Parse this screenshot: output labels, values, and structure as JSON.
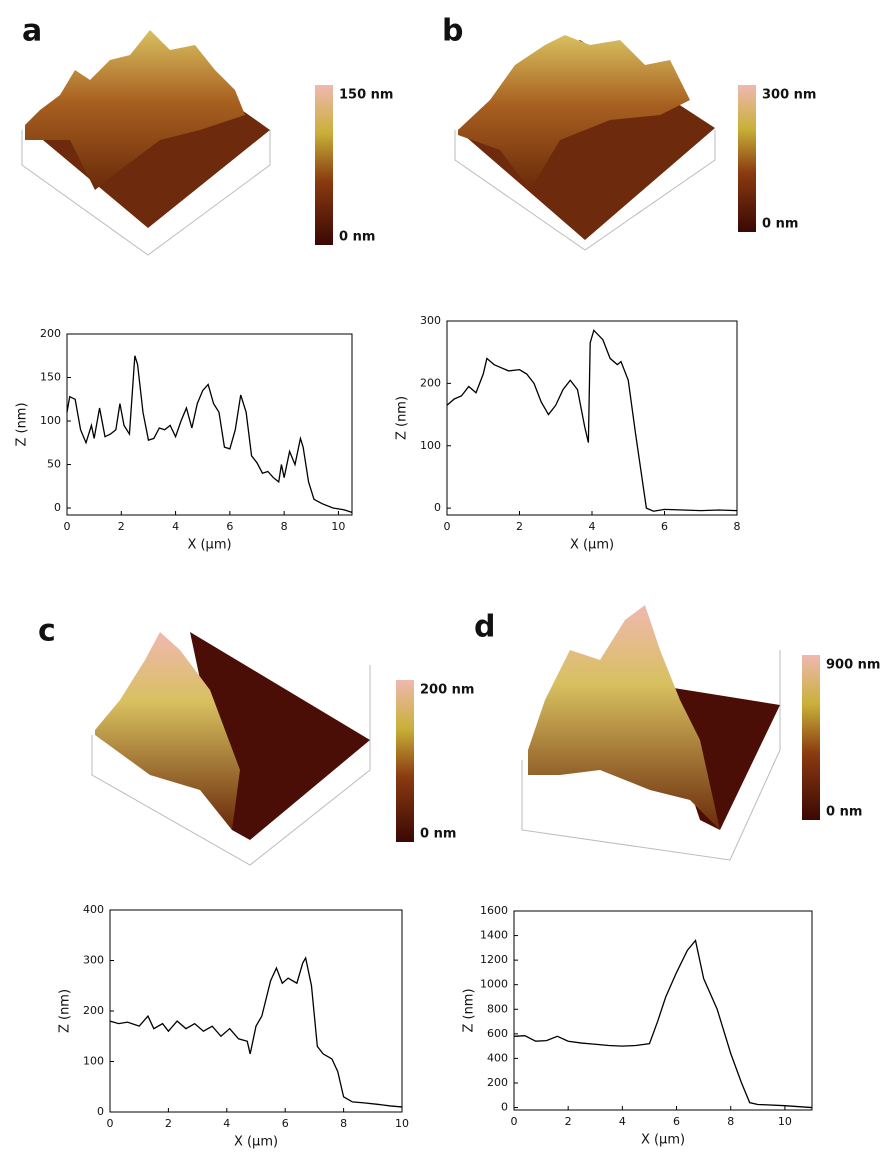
{
  "chart_data": [
    {
      "type": "line",
      "panel": "a",
      "colorbar": {
        "max_label": "150 nm",
        "min_label": "0 nm"
      },
      "x_label": "X (μm)",
      "y_label": "Z (nm)",
      "xlim": [
        0,
        10.5
      ],
      "ylim": [
        -8,
        200
      ],
      "xticks": [
        0,
        2,
        4,
        6,
        8,
        10
      ],
      "yticks": [
        0,
        50,
        100,
        150,
        200
      ],
      "color": "#000000",
      "x": [
        0,
        0.1,
        0.3,
        0.5,
        0.7,
        0.9,
        1.0,
        1.2,
        1.4,
        1.6,
        1.8,
        1.95,
        2.1,
        2.3,
        2.5,
        2.6,
        2.8,
        3.0,
        3.2,
        3.4,
        3.6,
        3.8,
        4.0,
        4.2,
        4.4,
        4.6,
        4.8,
        5.0,
        5.2,
        5.4,
        5.6,
        5.8,
        6.0,
        6.2,
        6.4,
        6.6,
        6.8,
        7.0,
        7.2,
        7.4,
        7.6,
        7.8,
        7.9,
        8.0,
        8.2,
        8.4,
        8.6,
        8.7,
        8.9,
        9.1,
        9.4,
        9.8,
        10.2,
        10.5
      ],
      "values": [
        110,
        128,
        125,
        90,
        75,
        95,
        80,
        115,
        82,
        85,
        90,
        120,
        95,
        85,
        175,
        165,
        110,
        78,
        80,
        92,
        90,
        95,
        82,
        100,
        115,
        92,
        120,
        135,
        142,
        120,
        110,
        70,
        68,
        90,
        130,
        110,
        60,
        52,
        40,
        42,
        35,
        30,
        50,
        35,
        65,
        50,
        80,
        70,
        30,
        10,
        5,
        0,
        -2,
        -5
      ]
    },
    {
      "type": "line",
      "panel": "b",
      "colorbar": {
        "max_label": "300 nm",
        "min_label": "0 nm"
      },
      "x_label": "X (μm)",
      "y_label": "Z (nm)",
      "xlim": [
        0,
        8
      ],
      "ylim": [
        -11,
        300
      ],
      "xticks": [
        0,
        2,
        4,
        6,
        8
      ],
      "yticks": [
        0,
        100,
        200,
        300
      ],
      "color": "#000000",
      "x": [
        0,
        0.2,
        0.4,
        0.6,
        0.8,
        1.0,
        1.1,
        1.3,
        1.5,
        1.7,
        2.0,
        2.2,
        2.4,
        2.6,
        2.8,
        3.0,
        3.2,
        3.4,
        3.6,
        3.8,
        3.9,
        3.95,
        4.05,
        4.3,
        4.5,
        4.7,
        4.8,
        5.0,
        5.2,
        5.4,
        5.5,
        5.7,
        6.0,
        6.5,
        7.0,
        7.5,
        8.0
      ],
      "values": [
        165,
        175,
        180,
        195,
        185,
        215,
        240,
        230,
        225,
        220,
        222,
        215,
        200,
        170,
        150,
        165,
        190,
        205,
        190,
        130,
        105,
        265,
        285,
        270,
        240,
        230,
        235,
        205,
        120,
        40,
        0,
        -5,
        -2,
        -3,
        -4,
        -3,
        -4
      ]
    },
    {
      "type": "line",
      "panel": "c",
      "colorbar": {
        "max_label": "200 nm",
        "min_label": "0 nm"
      },
      "x_label": "X (μm)",
      "y_label": "Z (nm)",
      "xlim": [
        0,
        10
      ],
      "ylim": [
        0,
        400
      ],
      "xticks": [
        0,
        2,
        4,
        6,
        8,
        10
      ],
      "yticks": [
        0,
        100,
        200,
        300,
        400
      ],
      "color": "#000000",
      "x": [
        0,
        0.3,
        0.6,
        1,
        1.3,
        1.5,
        1.8,
        2.0,
        2.3,
        2.6,
        2.9,
        3.2,
        3.5,
        3.8,
        4.1,
        4.4,
        4.7,
        4.8,
        5.0,
        5.2,
        5.5,
        5.7,
        5.9,
        6.1,
        6.4,
        6.6,
        6.7,
        6.9,
        7.1,
        7.3,
        7.6,
        7.8,
        8.0,
        8.3,
        8.7,
        9.2,
        9.6,
        10
      ],
      "values": [
        180,
        175,
        178,
        170,
        190,
        165,
        175,
        160,
        180,
        165,
        175,
        160,
        170,
        150,
        165,
        145,
        140,
        115,
        170,
        190,
        260,
        285,
        255,
        265,
        255,
        295,
        305,
        250,
        130,
        115,
        105,
        80,
        30,
        20,
        18,
        15,
        12,
        10
      ]
    },
    {
      "type": "line",
      "panel": "d",
      "colorbar": {
        "max_label": "900 nm",
        "min_label": "0 nm"
      },
      "x_label": "X (μm)",
      "y_label": "Z (nm)",
      "xlim": [
        0,
        11
      ],
      "ylim": [
        -20,
        1600
      ],
      "xticks": [
        0,
        2,
        4,
        6,
        8,
        10
      ],
      "yticks": [
        0,
        200,
        400,
        600,
        800,
        1000,
        1200,
        1400,
        1600
      ],
      "color": "#000000",
      "x": [
        0,
        0.4,
        0.8,
        1.2,
        1.6,
        2.0,
        2.5,
        3,
        3.5,
        4,
        4.5,
        5,
        5.3,
        5.6,
        6,
        6.4,
        6.7,
        7,
        7.5,
        8,
        8.4,
        8.7,
        9,
        10,
        11
      ],
      "values": [
        580,
        585,
        540,
        545,
        580,
        540,
        525,
        515,
        505,
        500,
        505,
        520,
        700,
        900,
        1100,
        1280,
        1360,
        1050,
        800,
        440,
        200,
        40,
        25,
        15,
        0
      ]
    }
  ]
}
